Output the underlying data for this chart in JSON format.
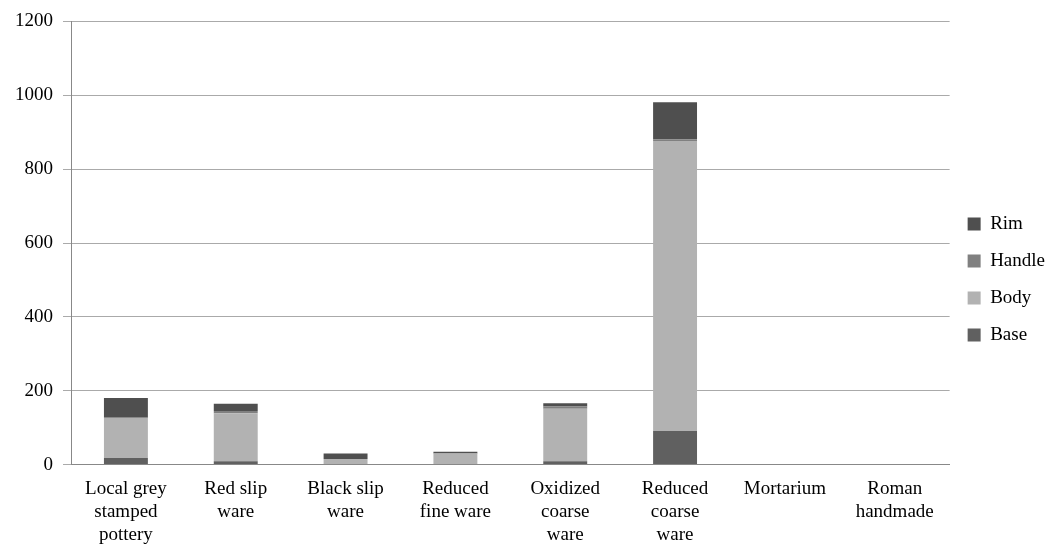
{
  "chart_data": {
    "type": "bar",
    "stacked": true,
    "categories": [
      "Local grey stamped pottery",
      "Red slip ware",
      "Black slip ware",
      "Reduced fine ware",
      "Oxidized coarse ware",
      "Reduced coarse ware",
      "Mortarium",
      "Roman handmade"
    ],
    "series": [
      {
        "name": "Base",
        "color": "#606060",
        "values": [
          18,
          9,
          0,
          0,
          9,
          91,
          0,
          0
        ]
      },
      {
        "name": "Body",
        "color": "#b2b2b2",
        "values": [
          109,
          130,
          15,
          30,
          142,
          785,
          0,
          0
        ]
      },
      {
        "name": "Handle",
        "color": "#808080",
        "values": [
          0,
          6,
          0,
          0,
          6,
          5,
          0,
          0
        ]
      },
      {
        "name": "Rim",
        "color": "#4f4f4f",
        "values": [
          53,
          20,
          15,
          5,
          9,
          100,
          0,
          0
        ]
      }
    ],
    "ylim": [
      0,
      1200
    ],
    "yticks": [
      0,
      200,
      400,
      600,
      800,
      1000,
      1200
    ],
    "grid": "y",
    "legend": "right"
  }
}
